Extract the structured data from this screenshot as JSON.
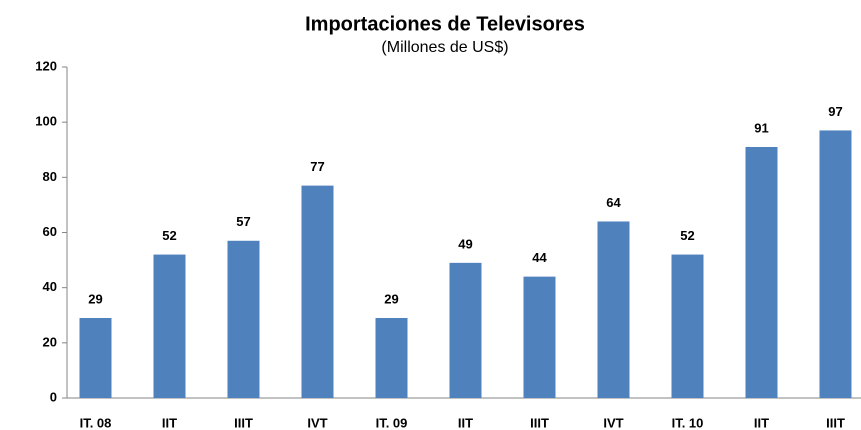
{
  "chart_data": {
    "type": "bar",
    "title": "Importaciones de Televisores",
    "subtitle": "(Millones de US$)",
    "categories": [
      "IT. 08",
      "IIT",
      "IIIT",
      "IVT",
      "IT. 09",
      "IIT",
      "IIIT",
      "IVT",
      "IT. 10",
      "IIT",
      "IIIT"
    ],
    "values": [
      29,
      52,
      57,
      77,
      29,
      49,
      44,
      64,
      52,
      91,
      97
    ],
    "color": "#4f81bd",
    "ylim": [
      0,
      120
    ],
    "yticks": [
      0,
      20,
      40,
      60,
      80,
      100,
      120
    ],
    "grid": false
  }
}
